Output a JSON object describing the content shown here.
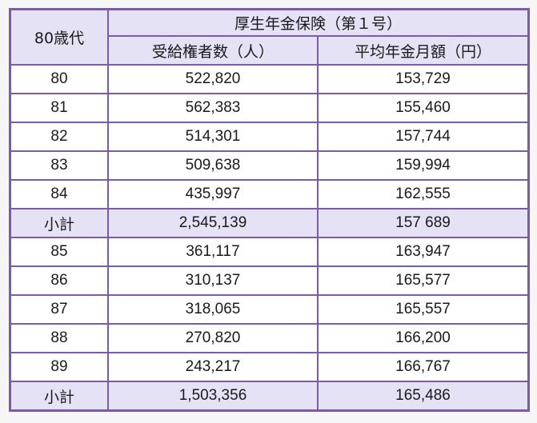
{
  "table": {
    "corner_header": "80歳代",
    "group_header": "厚生年金保険（第１号）",
    "columns": [
      "受給権者数（人）",
      "平均年金月額（円）"
    ],
    "rows": [
      {
        "age": "80",
        "recipients": "522,820",
        "avg_monthly": "153,729",
        "subtotal": false
      },
      {
        "age": "81",
        "recipients": "562,383",
        "avg_monthly": "155,460",
        "subtotal": false
      },
      {
        "age": "82",
        "recipients": "514,301",
        "avg_monthly": "157,744",
        "subtotal": false
      },
      {
        "age": "83",
        "recipients": "509,638",
        "avg_monthly": "159,994",
        "subtotal": false
      },
      {
        "age": "84",
        "recipients": "435,997",
        "avg_monthly": "162,555",
        "subtotal": false
      },
      {
        "age": "小計",
        "recipients": "2,545,139",
        "avg_monthly": "157 689",
        "subtotal": true
      },
      {
        "age": "85",
        "recipients": "361,117",
        "avg_monthly": "163,947",
        "subtotal": false
      },
      {
        "age": "86",
        "recipients": "310,137",
        "avg_monthly": "165,577",
        "subtotal": false
      },
      {
        "age": "87",
        "recipients": "318,065",
        "avg_monthly": "165,557",
        "subtotal": false
      },
      {
        "age": "88",
        "recipients": "270,820",
        "avg_monthly": "166,200",
        "subtotal": false
      },
      {
        "age": "89",
        "recipients": "243,217",
        "avg_monthly": "166,767",
        "subtotal": false
      },
      {
        "age": "小計",
        "recipients": "1,503,356",
        "avg_monthly": "165,486",
        "subtotal": true
      }
    ]
  },
  "colors": {
    "border": "#7b5aa6",
    "header_bg": "#e4e2f4",
    "cell_bg": "#ffffff"
  }
}
